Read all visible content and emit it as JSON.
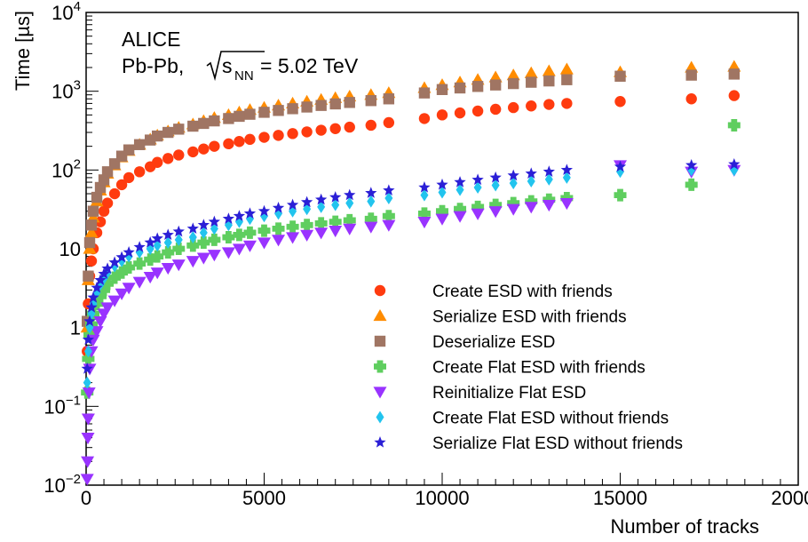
{
  "chart_data": {
    "type": "scatter",
    "experiment_label": "ALICE",
    "collision_label_prefix": "Pb-Pb, ",
    "collision_energy_sym": "s",
    "collision_energy_sub": "NN",
    "collision_energy_value": " = 5.02 TeV",
    "xlabel": "Number of tracks",
    "ylabel": "Time [µs]",
    "xlim": [
      0,
      20000
    ],
    "ylim": [
      0.01,
      10000
    ],
    "y_scale": "log",
    "x_ticks": [
      "0",
      "5000",
      "10000",
      "15000",
      "20000"
    ],
    "y_ticks": [
      {
        "value": 0.01,
        "base": "10",
        "exp": "−2"
      },
      {
        "value": 0.1,
        "base": "10",
        "exp": "−1"
      },
      {
        "value": 1,
        "base": "1",
        "exp": ""
      },
      {
        "value": 10,
        "base": "10",
        "exp": ""
      },
      {
        "value": 100,
        "base": "10",
        "exp": "2"
      },
      {
        "value": 1000,
        "base": "10",
        "exp": "3"
      },
      {
        "value": 10000,
        "base": "10",
        "exp": "4"
      }
    ],
    "legend_position": "bottom-right",
    "series": [
      {
        "name": "Create ESD with friends",
        "marker": "circle",
        "color": "#ff3b0f",
        "x": [
          30,
          60,
          100,
          150,
          200,
          300,
          400,
          500,
          600,
          800,
          1000,
          1200,
          1500,
          1800,
          2000,
          2300,
          2600,
          3000,
          3300,
          3600,
          4000,
          4300,
          4600,
          5000,
          5400,
          5800,
          6200,
          6600,
          7000,
          7400,
          8000,
          8500,
          9500,
          10000,
          10500,
          11000,
          11500,
          12000,
          12500,
          13000,
          13500,
          15000,
          17000,
          18200
        ],
        "y": [
          0.5,
          2,
          4.5,
          7,
          10,
          16,
          22,
          30,
          38,
          50,
          65,
          80,
          95,
          110,
          125,
          140,
          155,
          170,
          185,
          200,
          215,
          230,
          245,
          260,
          275,
          290,
          305,
          320,
          335,
          350,
          370,
          400,
          450,
          500,
          530,
          560,
          590,
          620,
          650,
          680,
          700,
          740,
          800,
          880
        ]
      },
      {
        "name": "Serialize ESD with friends",
        "marker": "triangle-up",
        "color": "#ff8c00",
        "x": [
          30,
          60,
          100,
          150,
          200,
          300,
          400,
          500,
          600,
          800,
          1000,
          1200,
          1500,
          1800,
          2000,
          2300,
          2600,
          3000,
          3300,
          3600,
          4000,
          4300,
          4600,
          5000,
          5400,
          5800,
          6200,
          6600,
          7000,
          7400,
          8000,
          8500,
          9500,
          10000,
          10500,
          11000,
          11500,
          12000,
          12500,
          13000,
          13500,
          15000,
          17000,
          18200
        ],
        "y": [
          1,
          4,
          10,
          16,
          25,
          40,
          55,
          70,
          90,
          115,
          145,
          175,
          210,
          245,
          275,
          310,
          345,
          380,
          420,
          460,
          500,
          540,
          580,
          620,
          660,
          700,
          740,
          780,
          820,
          860,
          900,
          950,
          1100,
          1200,
          1300,
          1400,
          1500,
          1600,
          1700,
          1800,
          1900,
          1750,
          2000,
          2050
        ]
      },
      {
        "name": "Deserialize ESD",
        "marker": "square",
        "color": "#a07563",
        "x": [
          30,
          60,
          100,
          150,
          200,
          300,
          400,
          500,
          600,
          800,
          1000,
          1200,
          1500,
          1800,
          2000,
          2300,
          2600,
          3000,
          3300,
          3600,
          4000,
          4300,
          4600,
          5000,
          5400,
          5800,
          6200,
          6600,
          7000,
          7400,
          8000,
          8500,
          9500,
          10000,
          10500,
          11000,
          11500,
          12000,
          12500,
          13000,
          13500,
          15000,
          17000,
          18200
        ],
        "y": [
          1.2,
          4.5,
          12,
          20,
          30,
          45,
          60,
          75,
          95,
          120,
          150,
          180,
          210,
          240,
          270,
          300,
          330,
          360,
          390,
          420,
          450,
          480,
          510,
          540,
          570,
          600,
          630,
          660,
          690,
          720,
          760,
          800,
          950,
          1050,
          1100,
          1150,
          1200,
          1250,
          1300,
          1350,
          1400,
          1550,
          1600,
          1650
        ]
      },
      {
        "name": "Create Flat ESD with friends",
        "marker": "cross",
        "color": "#5fce5f",
        "x": [
          30,
          60,
          100,
          150,
          200,
          300,
          400,
          500,
          600,
          800,
          1000,
          1200,
          1500,
          1800,
          2000,
          2300,
          2600,
          3000,
          3300,
          3600,
          4000,
          4300,
          4600,
          5000,
          5400,
          5800,
          6200,
          6600,
          7000,
          7400,
          8000,
          8500,
          9500,
          10000,
          10500,
          11000,
          11500,
          12000,
          12500,
          13000,
          13500,
          15000,
          17000,
          18200
        ],
        "y": [
          0.15,
          0.4,
          0.8,
          1.1,
          1.5,
          2,
          2.5,
          3,
          3.6,
          4.3,
          5,
          5.8,
          6.5,
          7.3,
          8,
          9,
          10,
          11,
          12,
          13,
          14,
          15,
          16,
          17,
          18,
          19,
          20,
          21,
          22,
          23,
          24,
          26,
          28,
          30,
          32,
          34,
          36,
          38,
          40,
          42,
          44,
          48,
          65,
          370
        ]
      },
      {
        "name": "Reinitialize Flat ESD",
        "marker": "triangle-down",
        "color": "#9933ff",
        "x": [
          30,
          40,
          50,
          60,
          80,
          100,
          150,
          200,
          300,
          400,
          500,
          600,
          800,
          1000,
          1200,
          1500,
          1800,
          2000,
          2300,
          2600,
          3000,
          3300,
          3600,
          4000,
          4300,
          4600,
          5000,
          5400,
          5800,
          6200,
          6600,
          7000,
          7400,
          8000,
          8500,
          9500,
          10000,
          10500,
          11000,
          11500,
          12000,
          12500,
          13000,
          13500,
          15000,
          17000,
          18200
        ],
        "y": [
          0.012,
          0.02,
          0.04,
          0.07,
          0.15,
          0.3,
          0.5,
          0.7,
          0.9,
          1.2,
          1.5,
          1.8,
          2.2,
          2.7,
          3.2,
          3.8,
          4.4,
          5,
          5.7,
          6.3,
          7,
          7.7,
          8.4,
          9,
          10,
          11,
          12,
          13,
          14,
          15,
          16,
          17,
          18,
          19,
          20,
          22,
          24,
          26,
          28,
          30,
          32,
          34,
          36,
          38,
          115,
          95,
          100
        ]
      },
      {
        "name": "Create Flat ESD without friends",
        "marker": "diamond",
        "color": "#22c4ee",
        "x": [
          30,
          60,
          100,
          150,
          200,
          300,
          400,
          500,
          600,
          800,
          1000,
          1200,
          1500,
          1800,
          2000,
          2300,
          2600,
          3000,
          3300,
          3600,
          4000,
          4300,
          4600,
          5000,
          5400,
          5800,
          6200,
          6600,
          7000,
          7400,
          8000,
          8500,
          9500,
          10000,
          10500,
          11000,
          11500,
          12000,
          12500,
          13000,
          13500,
          15000,
          17000,
          18200
        ],
        "y": [
          0.2,
          0.5,
          1,
          1.5,
          2,
          2.8,
          3.5,
          4.2,
          5,
          6,
          7,
          8,
          9,
          10,
          11,
          12,
          13,
          14,
          16,
          18,
          20,
          22,
          24,
          26,
          28,
          30,
          32,
          34,
          36,
          38,
          40,
          44,
          48,
          52,
          56,
          60,
          64,
          68,
          72,
          76,
          80,
          95,
          100,
          100
        ]
      },
      {
        "name": "Serialize Flat ESD without friends",
        "marker": "star",
        "color": "#2b1fd6",
        "x": [
          30,
          60,
          100,
          150,
          200,
          300,
          400,
          500,
          600,
          800,
          1000,
          1200,
          1500,
          1800,
          2000,
          2300,
          2600,
          3000,
          3300,
          3600,
          4000,
          4300,
          4600,
          5000,
          5400,
          5800,
          6200,
          6600,
          7000,
          7400,
          8000,
          8500,
          9500,
          10000,
          10500,
          11000,
          11500,
          12000,
          12500,
          13000,
          13500,
          15000,
          17000,
          18200
        ],
        "y": [
          0.3,
          0.7,
          1.2,
          1.8,
          2.4,
          3.2,
          4,
          4.8,
          5.6,
          6.7,
          7.8,
          9,
          10.5,
          12,
          13.5,
          15,
          16.5,
          18,
          20,
          22,
          24,
          26,
          28,
          30,
          33,
          36,
          39,
          42,
          45,
          48,
          51,
          55,
          60,
          65,
          70,
          75,
          80,
          85,
          90,
          95,
          100,
          110,
          115,
          118
        ]
      }
    ]
  }
}
